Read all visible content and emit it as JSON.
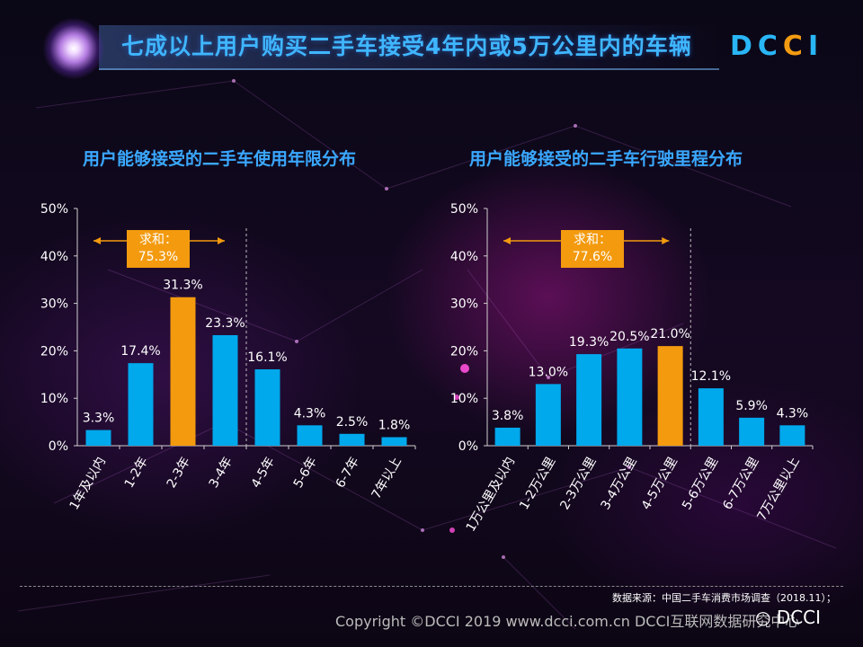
{
  "header": {
    "title": "七成以上用户购买二手车接受4年内或5万公里内的车辆",
    "logo_part1": "DC",
    "logo_part2": "C",
    "logo_part3": "I"
  },
  "colors": {
    "bar_blue": "#00a8ec",
    "bar_orange": "#f39a0e",
    "subtitle": "#3aa8ff",
    "title": "#3fb6ff"
  },
  "chart_data": [
    {
      "type": "bar",
      "title": "用户能够接受的二手车使用年限分布",
      "categories": [
        "1年及以内",
        "1-2年",
        "2-3年",
        "3-4年",
        "4-5年",
        "5-6年",
        "6-7年",
        "7年以上"
      ],
      "values": [
        3.3,
        17.4,
        31.3,
        23.3,
        16.1,
        4.3,
        2.5,
        1.8
      ],
      "value_labels": [
        "3.3%",
        "17.4%",
        "31.3%",
        "23.3%",
        "16.1%",
        "4.3%",
        "2.5%",
        "1.8%"
      ],
      "highlight_index": 2,
      "ylim": [
        0,
        50
      ],
      "yticks": [
        "0%",
        "10%",
        "20%",
        "30%",
        "40%",
        "50%"
      ],
      "annotation": {
        "label_line1": "求和：",
        "label_line2": "75.3%",
        "span_categories": [
          0,
          3
        ]
      }
    },
    {
      "type": "bar",
      "title": "用户能够接受的二手车行驶里程分布",
      "categories": [
        "1万公里及以内",
        "1-2万公里",
        "2-3万公里",
        "3-4万公里",
        "4-5万公里",
        "5-6万公里",
        "6-7万公里",
        "7万公里以上"
      ],
      "values": [
        3.8,
        13.0,
        19.3,
        20.5,
        21.0,
        12.1,
        5.9,
        4.3
      ],
      "value_labels": [
        "3.8%",
        "13.0%",
        "19.3%",
        "20.5%",
        "21.0%",
        "12.1%",
        "5.9%",
        "4.3%"
      ],
      "highlight_index": 4,
      "ylim": [
        0,
        50
      ],
      "yticks": [
        "0%",
        "10%",
        "20%",
        "30%",
        "40%",
        "50%"
      ],
      "annotation": {
        "label_line1": "求和：",
        "label_line2": "77.6%",
        "span_categories": [
          0,
          4
        ]
      }
    }
  ],
  "footer": {
    "source": "数据来源：中国二手车消费市场调查（2018.11）；",
    "copyright": "Copyright ©DCCI 2019  www.dcci.com.cn   DCCI互联网数据研究中心",
    "wechat": "DCCI"
  }
}
